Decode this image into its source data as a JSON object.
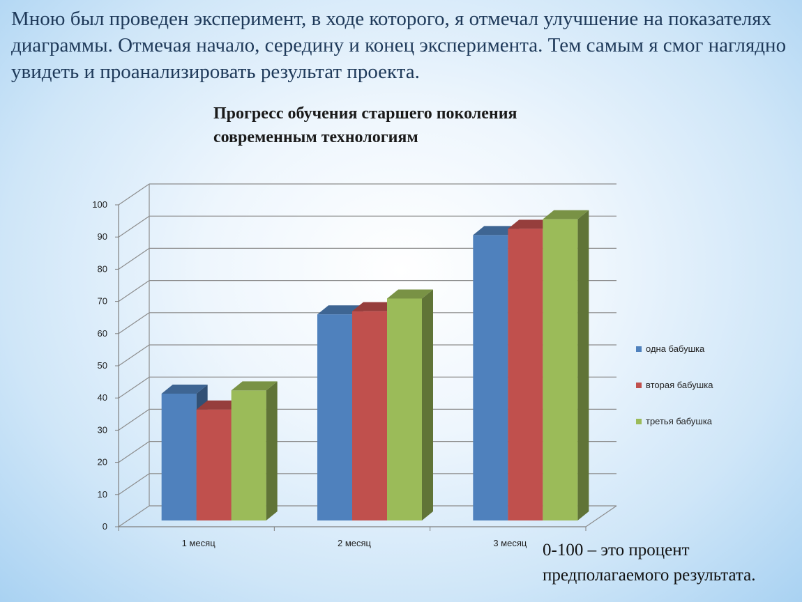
{
  "intro_text": "Мною был проведен эксперимент, в ходе которого, я отмечал улучшение на показателях диаграммы. Отмечая начало, середину и конец эксперимента. Тем самым я смог наглядно увидеть и проанализировать результат проекта.",
  "note_text": "0-100 – это процент предполагаемого результата.",
  "chart_data": {
    "type": "bar",
    "title": "Прогресс обучения старшего поколения современным технологиям",
    "categories": [
      "1 месяц",
      "2 месяц",
      "3 месяц"
    ],
    "series": [
      {
        "name": "одна бабушка",
        "values": [
          40,
          65,
          90
        ],
        "color": "#4f81bd"
      },
      {
        "name": "вторая бабушка",
        "values": [
          35,
          66,
          92
        ],
        "color": "#c0504d"
      },
      {
        "name": "третья бабушка",
        "values": [
          41,
          70,
          95
        ],
        "color": "#9bbb59"
      }
    ],
    "yticks": [
      0,
      10,
      20,
      30,
      40,
      50,
      60,
      70,
      80,
      90,
      100
    ],
    "ylim": [
      0,
      100
    ],
    "grid": true,
    "legend": "right",
    "style": "3d"
  }
}
